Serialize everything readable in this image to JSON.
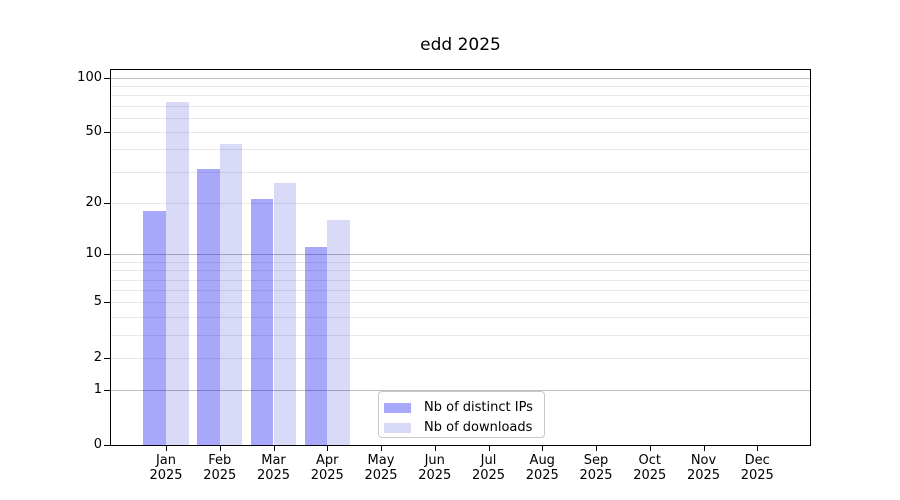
{
  "chart_data": {
    "type": "bar",
    "title": "edd 2025",
    "months": [
      "Jan",
      "Feb",
      "Mar",
      "Apr",
      "May",
      "Jun",
      "Jul",
      "Aug",
      "Sep",
      "Oct",
      "Nov",
      "Dec"
    ],
    "year": "2025",
    "series": [
      {
        "name": "Nb of distinct IPs",
        "color": "rgba(0,0,240,0.34)",
        "values": [
          18,
          31,
          21,
          11,
          0,
          0,
          0,
          0,
          0,
          0,
          0,
          0
        ]
      },
      {
        "name": "Nb of downloads",
        "color": "rgba(0,0,210,0.15)",
        "values": [
          73,
          43,
          26,
          16,
          0,
          0,
          0,
          0,
          0,
          0,
          0,
          0
        ]
      }
    ],
    "yscale": "log1p",
    "ylim": [
      0,
      111.7
    ],
    "yticks": [
      100,
      50,
      20,
      10,
      5,
      2,
      1,
      0
    ],
    "grid_major": [
      1,
      10,
      100
    ],
    "grid_minor": [
      2,
      3,
      4,
      5,
      6,
      7,
      8,
      9,
      20,
      30,
      40,
      50,
      60,
      70,
      80,
      90
    ],
    "grid": "on",
    "legend_position": "lower center",
    "xlabel": "",
    "ylabel": ""
  }
}
